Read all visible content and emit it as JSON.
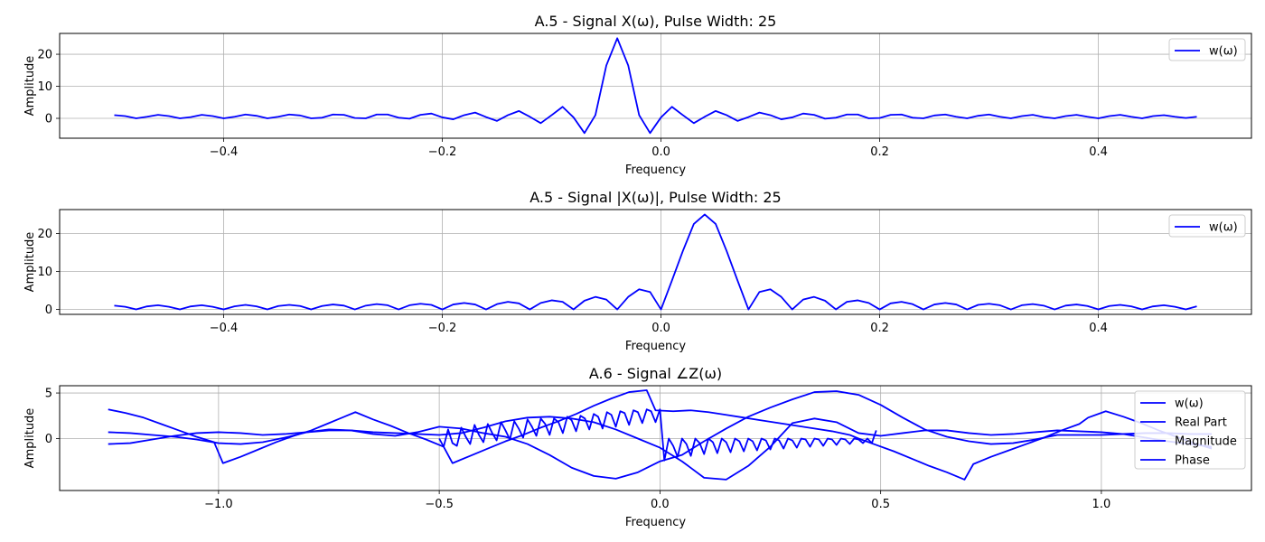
{
  "colors": {
    "line": "#0000ff",
    "grid": "#b0b0b0",
    "legend_border": "#cccccc"
  },
  "chart_data": [
    {
      "type": "line",
      "title": "A.5 - Signal X(ω), Pulse Width: 25",
      "xlabel": "Frequency",
      "ylabel": "Amplitude",
      "xlim": [
        -0.55,
        0.54
      ],
      "ylim": [
        -6.2,
        26.5
      ],
      "xticks": [
        -0.4,
        -0.2,
        0.0,
        0.2,
        0.4
      ],
      "xtick_labels": [
        "−0.4",
        "−0.2",
        "0.0",
        "0.2",
        "0.4"
      ],
      "yticks": [
        0,
        10,
        20
      ],
      "ytick_labels": [
        "0",
        "10",
        "20"
      ],
      "grid": true,
      "legend_position": "upper-right",
      "series": [
        {
          "name": "w(ω)",
          "x_start": -0.5,
          "x_step": 0.01,
          "values": [
            1.0,
            0.7,
            0.0,
            0.5,
            1.1,
            0.7,
            0.0,
            0.4,
            1.1,
            0.7,
            0.0,
            0.5,
            1.2,
            0.8,
            0.0,
            0.5,
            1.2,
            0.9,
            0.0,
            0.2,
            1.2,
            1.1,
            0.1,
            0.0,
            1.2,
            1.2,
            0.2,
            -0.1,
            1.1,
            1.5,
            0.3,
            -0.3,
            1.0,
            1.8,
            0.4,
            -0.8,
            1.0,
            2.3,
            0.5,
            -1.5,
            1.0,
            3.6,
            0.3,
            -4.6,
            1.0,
            16.5,
            25.0,
            16.5,
            1.0,
            -4.6,
            0.3,
            3.6,
            1.0,
            -1.5,
            0.5,
            2.3,
            1.0,
            -0.8,
            0.4,
            1.8,
            1.0,
            -0.3,
            0.3,
            1.5,
            1.1,
            -0.1,
            0.2,
            1.2,
            1.2,
            0.0,
            0.1,
            1.1,
            1.2,
            0.2,
            0.0,
            0.9,
            1.2,
            0.5,
            0.0,
            0.8,
            1.2,
            0.5,
            0.0,
            0.7,
            1.1,
            0.4,
            0.0,
            0.7,
            1.1,
            0.5,
            0.0,
            0.7,
            1.1,
            0.5,
            0.0,
            0.7,
            1.0,
            0.5,
            0.1,
            0.5
          ]
        }
      ]
    },
    {
      "type": "line",
      "title": "A.5 - Signal |X(ω)|, Pulse Width: 25",
      "xlabel": "Frequency",
      "ylabel": "Amplitude",
      "xlim": [
        -0.55,
        0.54
      ],
      "ylim": [
        -1.3,
        26.3
      ],
      "xticks": [
        -0.4,
        -0.2,
        0.0,
        0.2,
        0.4
      ],
      "xtick_labels": [
        "−0.4",
        "−0.2",
        "0.0",
        "0.2",
        "0.4"
      ],
      "yticks": [
        0,
        10,
        20
      ],
      "ytick_labels": [
        "0",
        "10",
        "20"
      ],
      "grid": true,
      "legend_position": "upper-right",
      "series": [
        {
          "name": "w(ω)",
          "x_start": -0.5,
          "x_step": 0.01,
          "values": [
            1.0,
            0.7,
            0.0,
            0.8,
            1.1,
            0.7,
            0.0,
            0.8,
            1.1,
            0.7,
            0.0,
            0.8,
            1.2,
            0.8,
            0.0,
            0.9,
            1.2,
            0.9,
            0.0,
            0.9,
            1.3,
            1.0,
            0.0,
            1.0,
            1.4,
            1.1,
            0.0,
            1.1,
            1.5,
            1.2,
            0.0,
            1.3,
            1.7,
            1.3,
            0.0,
            1.4,
            2.0,
            1.6,
            0.0,
            1.7,
            2.4,
            2.0,
            0.0,
            2.3,
            3.3,
            2.6,
            0.0,
            3.3,
            5.3,
            4.6,
            0.0,
            7.6,
            15.4,
            22.5,
            25.0,
            22.5,
            15.4,
            7.6,
            0.0,
            4.6,
            5.3,
            3.3,
            0.0,
            2.6,
            3.3,
            2.3,
            0.0,
            2.0,
            2.4,
            1.7,
            0.0,
            1.6,
            2.0,
            1.4,
            0.0,
            1.3,
            1.7,
            1.3,
            0.0,
            1.2,
            1.5,
            1.1,
            0.0,
            1.1,
            1.4,
            1.0,
            0.0,
            1.0,
            1.3,
            0.9,
            0.0,
            0.9,
            1.2,
            0.8,
            0.0,
            0.8,
            1.1,
            0.7,
            0.0,
            0.8
          ]
        }
      ]
    },
    {
      "type": "line",
      "title": "A.6 - Signal ∠Z(ω)",
      "xlabel": "Frequency",
      "ylabel": "Amplitude",
      "xlim": [
        -1.36,
        1.34
      ],
      "ylim": [
        -5.7,
        5.8
      ],
      "xticks": [
        -1.0,
        -0.5,
        0.0,
        0.5,
        1.0
      ],
      "xtick_labels": [
        "−1.0",
        "−0.5",
        "0.0",
        "0.5",
        "1.0"
      ],
      "yticks": [
        0,
        5
      ],
      "ytick_labels": [
        "0",
        "5"
      ],
      "grid": true,
      "legend_position": "upper-right",
      "series": [
        {
          "name": "w(ω)",
          "x": [
            -0.5,
            -0.49,
            -0.48,
            -0.47,
            -0.46,
            -0.45,
            -0.44,
            -0.43,
            -0.42,
            -0.41,
            -0.4,
            -0.39,
            -0.38,
            -0.37,
            -0.36,
            -0.35,
            -0.34,
            -0.33,
            -0.32,
            -0.31,
            -0.3,
            -0.29,
            -0.28,
            -0.27,
            -0.26,
            -0.25,
            -0.24,
            -0.23,
            -0.22,
            -0.21,
            -0.2,
            -0.19,
            -0.18,
            -0.17,
            -0.16,
            -0.15,
            -0.14,
            -0.13,
            -0.12,
            -0.11,
            -0.1,
            -0.09,
            -0.08,
            -0.07,
            -0.06,
            -0.05,
            -0.04,
            -0.03,
            -0.02,
            -0.01,
            0.0,
            0.01,
            0.02,
            0.03,
            0.04,
            0.05,
            0.06,
            0.07,
            0.08,
            0.09,
            0.1,
            0.11,
            0.12,
            0.13,
            0.14,
            0.15,
            0.16,
            0.17,
            0.18,
            0.19,
            0.2,
            0.21,
            0.22,
            0.23,
            0.24,
            0.25,
            0.26,
            0.27,
            0.28,
            0.29,
            0.3,
            0.31,
            0.32,
            0.33,
            0.34,
            0.35,
            0.36,
            0.37,
            0.38,
            0.39,
            0.4,
            0.41,
            0.42,
            0.43,
            0.44,
            0.45,
            0.46,
            0.47,
            0.48,
            0.49
          ],
          "values": [
            0,
            -0.9,
            1.0,
            -0.5,
            -0.8,
            1.2,
            0.2,
            -0.6,
            1.5,
            0.4,
            -0.4,
            1.6,
            0.6,
            -0.2,
            1.8,
            0.9,
            -0.1,
            1.9,
            1.1,
            0.1,
            2.1,
            1.3,
            0.3,
            2.2,
            1.6,
            0.4,
            2.2,
            1.8,
            0.6,
            2.4,
            2.0,
            0.8,
            2.5,
            2.2,
            1.0,
            2.7,
            2.4,
            1.1,
            2.9,
            2.6,
            1.3,
            3.0,
            2.8,
            1.5,
            3.1,
            2.9,
            1.7,
            3.2,
            3.0,
            1.8,
            3.2,
            -2.4,
            0.0,
            -0.8,
            -2.0,
            0.0,
            -0.6,
            -1.9,
            0.0,
            -0.5,
            -1.7,
            0.0,
            -0.4,
            -1.6,
            0.0,
            -0.4,
            -1.5,
            0.0,
            -0.3,
            -1.4,
            0.0,
            -0.3,
            -1.3,
            0.0,
            -0.2,
            -1.2,
            0.0,
            -0.2,
            -1.1,
            0.0,
            -0.2,
            -1.0,
            0.0,
            -0.1,
            -0.9,
            0.0,
            -0.1,
            -0.8,
            0.0,
            -0.1,
            -0.7,
            0.0,
            -0.1,
            -0.6,
            0.0,
            -0.1,
            -0.5,
            0.0,
            -0.5,
            0.9
          ]
        },
        {
          "name": "Real Part",
          "x": [
            -1.25,
            -1.2,
            -1.15,
            -1.1,
            -1.05,
            -1.0,
            -0.95,
            -0.9,
            -0.85,
            -0.8,
            -0.75,
            -0.7,
            -0.65,
            -0.6,
            -0.55,
            -0.5,
            -0.45,
            -0.4,
            -0.35,
            -0.3,
            -0.25,
            -0.2,
            -0.15,
            -0.1,
            -0.05,
            0.0,
            0.05,
            0.1,
            0.15,
            0.2,
            0.25,
            0.3,
            0.35,
            0.4,
            0.45,
            0.5,
            0.55,
            0.6,
            0.65,
            0.7,
            0.75,
            0.8,
            0.85,
            0.9,
            0.95,
            1.0,
            1.05,
            1.1,
            1.15,
            1.2,
            1.25
          ],
          "values": [
            -0.6,
            -0.5,
            -0.1,
            0.3,
            0.6,
            0.7,
            0.6,
            0.4,
            0.5,
            0.7,
            0.9,
            0.9,
            0.7,
            0.6,
            0.5,
            0.4,
            0.6,
            1.2,
            1.9,
            2.3,
            2.4,
            2.2,
            1.8,
            1.0,
            0.0,
            -1.0,
            -2.5,
            -4.3,
            -4.5,
            -3.0,
            -0.9,
            1.7,
            2.2,
            1.8,
            0.6,
            0.3,
            0.6,
            0.9,
            0.9,
            0.6,
            0.4,
            0.5,
            0.7,
            0.9,
            0.8,
            0.7,
            0.5,
            0.1,
            -0.3,
            -0.6,
            -0.9
          ]
        },
        {
          "name": "Magnitude",
          "x": [
            -1.25,
            -1.2,
            -1.15,
            -1.1,
            -1.05,
            -1.0,
            -0.95,
            -0.9,
            -0.85,
            -0.8,
            -0.75,
            -0.7,
            -0.65,
            -0.6,
            -0.55,
            -0.5,
            -0.45,
            -0.4,
            -0.35,
            -0.3,
            -0.25,
            -0.2,
            -0.15,
            -0.1,
            -0.05,
            0.0,
            0.05,
            0.1,
            0.15,
            0.2,
            0.25,
            0.3,
            0.35,
            0.4,
            0.45,
            0.5,
            0.55,
            0.6,
            0.65,
            0.7,
            0.75,
            0.8,
            0.85,
            0.9,
            0.95,
            1.0,
            1.05,
            1.1,
            1.15,
            1.2,
            1.25
          ],
          "values": [
            0.7,
            0.6,
            0.4,
            0.2,
            -0.1,
            -0.5,
            -0.6,
            -0.4,
            0.1,
            0.7,
            1.0,
            0.9,
            0.5,
            0.3,
            0.7,
            1.3,
            1.1,
            0.6,
            0.2,
            -0.6,
            -1.8,
            -3.2,
            -4.1,
            -4.4,
            -3.7,
            -2.5,
            -1.8,
            -0.3,
            1.1,
            2.4,
            3.4,
            4.3,
            5.1,
            5.2,
            4.8,
            3.7,
            2.3,
            1.0,
            0.2,
            -0.3,
            -0.6,
            -0.5,
            -0.1,
            0.4,
            0.4,
            0.4,
            0.5,
            0.6,
            0.6,
            0.5,
            0.5
          ]
        },
        {
          "name": "Phase",
          "x": [
            -1.25,
            -1.21,
            -1.17,
            -1.13,
            -1.09,
            -1.05,
            -1.01,
            -0.99,
            -0.95,
            -0.91,
            -0.87,
            -0.83,
            -0.79,
            -0.75,
            -0.73,
            -0.69,
            -0.65,
            -0.61,
            -0.57,
            -0.53,
            -0.49,
            -0.47,
            -0.43,
            -0.39,
            -0.35,
            -0.31,
            -0.27,
            -0.23,
            -0.19,
            -0.15,
            -0.11,
            -0.07,
            -0.03,
            -0.01,
            0.03,
            0.07,
            0.11,
            0.15,
            0.19,
            0.23,
            0.27,
            0.31,
            0.35,
            0.39,
            0.43,
            0.45,
            0.49,
            0.53,
            0.57,
            0.61,
            0.65,
            0.69,
            0.71,
            0.75,
            0.79,
            0.83,
            0.87,
            0.91,
            0.95,
            0.97,
            1.01,
            1.05,
            1.09,
            1.13,
            1.17,
            1.21,
            1.25
          ],
          "values": [
            3.2,
            2.8,
            2.3,
            1.6,
            0.9,
            0.2,
            -0.4,
            -2.7,
            -2.0,
            -1.2,
            -0.4,
            0.3,
            0.9,
            1.7,
            2.1,
            2.9,
            2.1,
            1.4,
            0.6,
            -0.1,
            -0.9,
            -2.7,
            -1.9,
            -1.1,
            -0.3,
            0.4,
            1.2,
            1.9,
            2.7,
            3.6,
            4.4,
            5.1,
            5.3,
            3.1,
            3.0,
            3.1,
            2.9,
            2.6,
            2.3,
            2.0,
            1.7,
            1.4,
            1.1,
            0.8,
            0.4,
            0.0,
            -0.7,
            -1.4,
            -2.2,
            -3.0,
            -3.7,
            -4.5,
            -2.8,
            -2.0,
            -1.3,
            -0.6,
            0.1,
            0.9,
            1.6,
            2.3,
            3.0,
            2.4,
            1.7,
            0.9,
            0.2,
            -0.5,
            -1.1
          ]
        }
      ]
    }
  ]
}
